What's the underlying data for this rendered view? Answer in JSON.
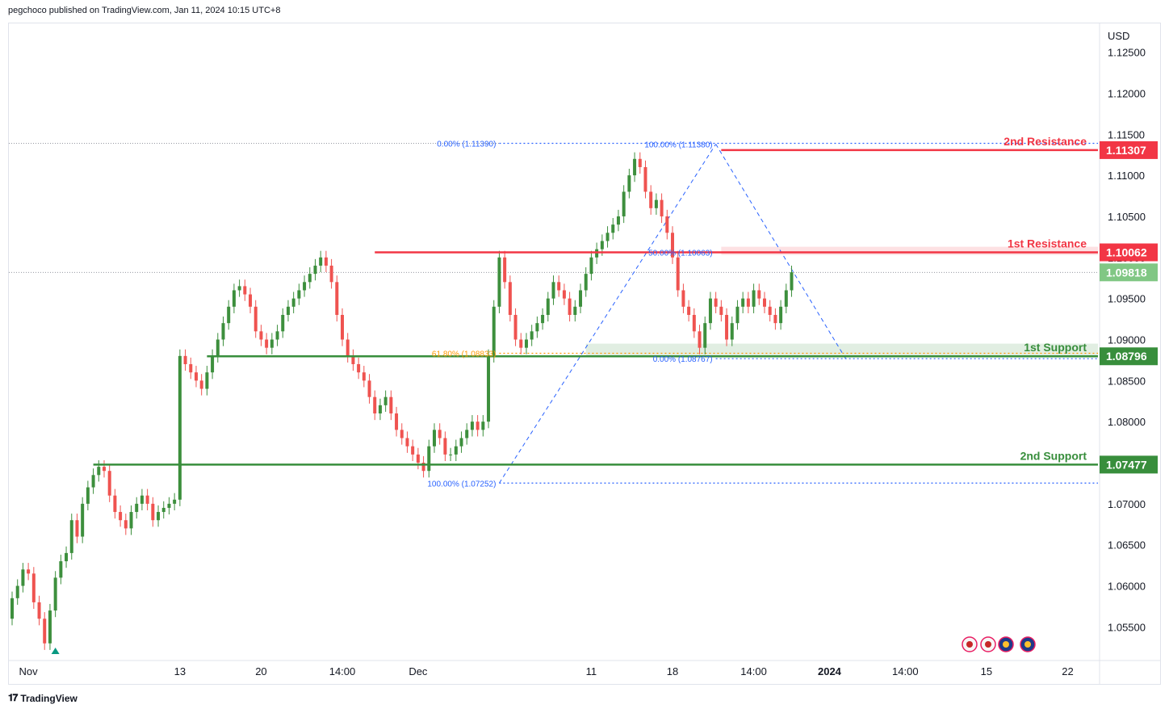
{
  "header": {
    "published": "pegchoco published on TradingView.com, Jan 11, 2024 10:15 UTC+8"
  },
  "footer": {
    "brand": "TradingView",
    "logo": "tradingview-logo-icon"
  },
  "colors": {
    "bull": "#26a69a",
    "bear": "#ef5350",
    "bull_body": "#3d8f3d",
    "resistance": "#f23645",
    "support": "#388e3c",
    "fib": "#2962ff",
    "fib618": "#ff9800",
    "last": "#81c784"
  },
  "chart_data": {
    "type": "candlestick",
    "currency": "USD",
    "y_ticks": [
      "1.12500",
      "1.12000",
      "1.11500",
      "1.11000",
      "1.10500",
      "1.10000",
      "1.09500",
      "1.09000",
      "1.08500",
      "1.08000",
      "1.07500",
      "1.07000",
      "1.06500",
      "1.06000",
      "1.05500"
    ],
    "ylim": [
      1.0515,
      1.1285
    ],
    "x_ticks": [
      {
        "label": "Nov",
        "i": 3
      },
      {
        "label": "13",
        "i": 31
      },
      {
        "label": "20",
        "i": 46
      },
      {
        "label": "14:00",
        "i": 61
      },
      {
        "label": "Dec",
        "i": 75
      },
      {
        "label": "11",
        "i": 107
      },
      {
        "label": "18",
        "i": 122
      },
      {
        "label": "14:00",
        "i": 137
      },
      {
        "label": "2024",
        "i": 151,
        "bold": true
      },
      {
        "label": "14:00",
        "i": 165
      },
      {
        "label": "15",
        "i": 180
      },
      {
        "label": "22",
        "i": 195
      }
    ],
    "levels": [
      {
        "name": "2nd Resistance",
        "value": 1.11307,
        "tag": "1.11307",
        "kind": "resistance",
        "from_i": 131
      },
      {
        "name": "1st Resistance",
        "value": 1.10062,
        "tag": "1.10062",
        "kind": "resistance",
        "from_i": 67
      },
      {
        "name": "1st Support",
        "value": 1.08796,
        "tag": "1.08796",
        "kind": "support",
        "from_i": 36
      },
      {
        "name": "2nd Support",
        "value": 1.07477,
        "tag": "1.07477",
        "kind": "support",
        "from_i": 15
      }
    ],
    "last_price": {
      "value": 1.09818,
      "tag": "1.09818"
    },
    "fib_labels": [
      {
        "text": "0.00% (1.11390)",
        "value": 1.1139,
        "side": "left",
        "i": 90
      },
      {
        "text": "100.00% (1.11380)",
        "value": 1.1138,
        "side": "left",
        "i": 130
      },
      {
        "text": "50.00% (1.10063)",
        "value": 1.10063,
        "side": "left",
        "i": 130
      },
      {
        "text": "61.80% (1.08833)",
        "value": 1.08833,
        "side": "left",
        "i": 90
      },
      {
        "text": "0.00% (1.08767)",
        "value": 1.08767,
        "side": "left",
        "i": 130
      },
      {
        "text": "100.00% (1.07252)",
        "value": 1.07252,
        "side": "left",
        "i": 90
      }
    ],
    "close": [
      1.0585,
      1.06,
      1.062,
      1.0615,
      1.058,
      1.056,
      1.053,
      1.057,
      1.061,
      1.063,
      1.064,
      1.068,
      1.066,
      1.07,
      1.072,
      1.0735,
      1.0745,
      1.074,
      1.071,
      1.069,
      1.068,
      1.067,
      1.069,
      1.07,
      1.071,
      1.07,
      1.068,
      1.069,
      1.0695,
      1.07,
      1.0705,
      1.088,
      1.087,
      1.086,
      1.085,
      1.084,
      1.086,
      1.088,
      1.09,
      1.092,
      1.094,
      1.096,
      1.0965,
      1.0955,
      1.094,
      1.091,
      1.09,
      1.089,
      1.09,
      1.091,
      1.093,
      1.094,
      1.095,
      1.096,
      1.097,
      1.098,
      1.099,
      1.1,
      1.099,
      1.097,
      1.093,
      1.09,
      1.088,
      1.087,
      1.086,
      1.085,
      1.083,
      1.081,
      1.082,
      1.083,
      1.081,
      1.079,
      1.078,
      1.077,
      1.076,
      1.075,
      1.074,
      1.077,
      1.079,
      1.078,
      1.076,
      1.076,
      1.077,
      1.078,
      1.079,
      1.08,
      1.079,
      1.08,
      1.088,
      1.094,
      1.1,
      1.097,
      1.093,
      1.09,
      1.089,
      1.09,
      1.091,
      1.092,
      1.093,
      1.095,
      1.097,
      1.096,
      1.095,
      1.093,
      1.094,
      1.096,
      1.098,
      1.1,
      1.101,
      1.102,
      1.103,
      1.104,
      1.105,
      1.108,
      1.11,
      1.112,
      1.111,
      1.108,
      1.106,
      1.107,
      1.105,
      1.103,
      1.1,
      1.096,
      1.094,
      1.093,
      1.091,
      1.089,
      1.092,
      1.095,
      1.094,
      1.093,
      1.09,
      1.092,
      1.094,
      1.095,
      1.094,
      1.096,
      1.095,
      1.094,
      1.093,
      1.092,
      1.094,
      1.096,
      1.0982
    ],
    "open": [
      1.056,
      1.0585,
      1.06,
      1.062,
      1.0615,
      1.058,
      1.056,
      1.053,
      1.057,
      1.061,
      1.063,
      1.064,
      1.068,
      1.066,
      1.07,
      1.072,
      1.0735,
      1.0745,
      1.074,
      1.071,
      1.069,
      1.068,
      1.067,
      1.069,
      1.07,
      1.071,
      1.07,
      1.068,
      1.069,
      1.0695,
      1.07,
      1.0705,
      1.088,
      1.087,
      1.086,
      1.085,
      1.084,
      1.086,
      1.088,
      1.09,
      1.092,
      1.094,
      1.096,
      1.0965,
      1.0955,
      1.094,
      1.091,
      1.09,
      1.089,
      1.09,
      1.091,
      1.093,
      1.094,
      1.095,
      1.096,
      1.097,
      1.098,
      1.099,
      1.1,
      1.099,
      1.097,
      1.093,
      1.09,
      1.088,
      1.087,
      1.086,
      1.085,
      1.083,
      1.081,
      1.082,
      1.083,
      1.081,
      1.079,
      1.078,
      1.077,
      1.076,
      1.075,
      1.074,
      1.077,
      1.079,
      1.078,
      1.076,
      1.076,
      1.077,
      1.078,
      1.079,
      1.08,
      1.079,
      1.08,
      1.088,
      1.094,
      1.1,
      1.097,
      1.093,
      1.09,
      1.089,
      1.09,
      1.091,
      1.092,
      1.093,
      1.095,
      1.097,
      1.096,
      1.095,
      1.093,
      1.094,
      1.096,
      1.098,
      1.1,
      1.101,
      1.102,
      1.103,
      1.104,
      1.105,
      1.108,
      1.11,
      1.112,
      1.111,
      1.108,
      1.106,
      1.107,
      1.105,
      1.103,
      1.1,
      1.096,
      1.094,
      1.093,
      1.091,
      1.089,
      1.092,
      1.095,
      1.094,
      1.093,
      1.09,
      1.092,
      1.094,
      1.095,
      1.094,
      1.096,
      1.095,
      1.094,
      1.093,
      1.092,
      1.094,
      1.096
    ]
  },
  "icons": [
    "us-flag-icon",
    "us-flag-icon",
    "eu-flag-icon",
    "eu-flag-icon"
  ]
}
